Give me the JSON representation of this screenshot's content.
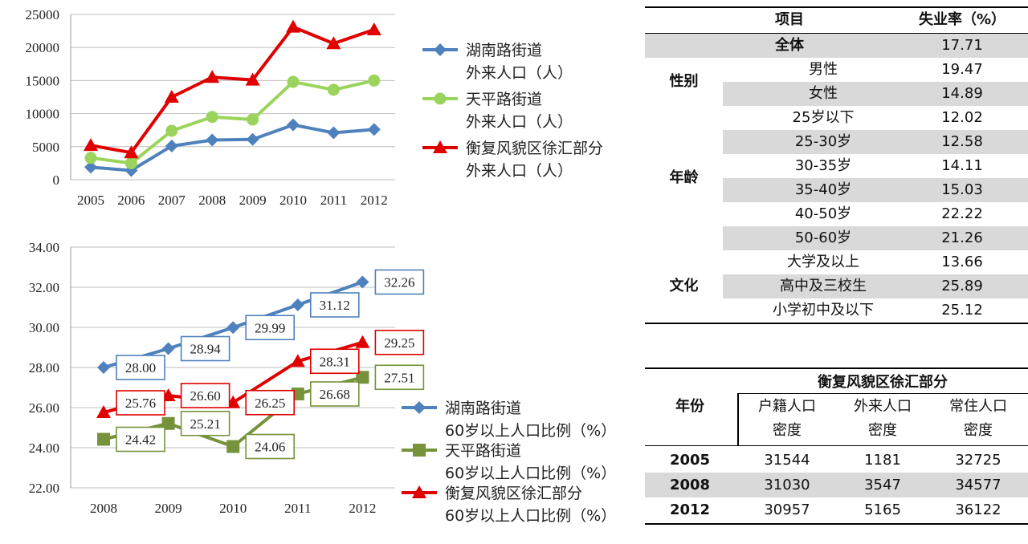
{
  "chart_data": [
    {
      "type": "line",
      "x": [
        "2005",
        "2006",
        "2007",
        "2008",
        "2009",
        "2010",
        "2011",
        "2012"
      ],
      "ylim": [
        0,
        25000
      ],
      "yticks": [
        "0",
        "5000",
        "10000",
        "15000",
        "20000",
        "25000"
      ],
      "grid": true,
      "series": [
        {
          "name": "湖南路街道\n外来人口（人）",
          "line1": "湖南路街道",
          "line2": "外来人口（人）",
          "color": "#4f81bd",
          "marker": "diamond",
          "values": [
            1900,
            1400,
            5100,
            6000,
            6100,
            8300,
            7100,
            7600
          ]
        },
        {
          "name": "天平路街道\n外来人口（人）",
          "line1": "天平路街道",
          "line2": "外来人口（人）",
          "color": "#9bd45c",
          "marker": "circle",
          "values": [
            3300,
            2500,
            7400,
            9500,
            9100,
            14800,
            13600,
            15000
          ]
        },
        {
          "name": "衡复风貌区徐汇部分\n外来人口（人）",
          "line1": "衡复风貌区徐汇部分",
          "line2": "外来人口（人）",
          "color": "#e00000",
          "marker": "triangle",
          "values": [
            5200,
            4100,
            12500,
            15500,
            15100,
            23100,
            20600,
            22700
          ]
        }
      ]
    },
    {
      "type": "line",
      "x": [
        "2008",
        "2009",
        "2010",
        "2011",
        "2012"
      ],
      "ylim": [
        22,
        34
      ],
      "yticks": [
        "22.00",
        "24.00",
        "26.00",
        "28.00",
        "30.00",
        "32.00",
        "34.00"
      ],
      "grid": true,
      "series": [
        {
          "name": "湖南路街道\n60岁以上人口比例（%）",
          "line1": "湖南路街道",
          "line2": "60岁以上人口比例（%）",
          "color": "#4f81bd",
          "marker": "diamond",
          "values": [
            28.0,
            28.94,
            29.99,
            31.12,
            32.26
          ],
          "labels": [
            "28.00",
            "28.94",
            "29.99",
            "31.12",
            "32.26"
          ]
        },
        {
          "name": "天平路街道\n60岁以上人口比例（%）",
          "line1": "天平路街道",
          "line2": "60岁以上人口比例（%）",
          "color": "#76933c",
          "marker": "square",
          "values": [
            24.42,
            25.21,
            24.06,
            26.68,
            27.51
          ],
          "labels": [
            "24.42",
            "25.21",
            "24.06",
            "26.68",
            "27.51"
          ]
        },
        {
          "name": "衡复风貌区徐汇部分\n60岁以上人口比例（%）",
          "line1": "衡复风貌区徐汇部分",
          "line2": "60岁以上人口比例（%）",
          "color": "#e00000",
          "marker": "triangle",
          "values": [
            25.76,
            26.6,
            26.25,
            28.31,
            29.25
          ],
          "labels": [
            "25.76",
            "26.60",
            "26.25",
            "28.31",
            "29.25"
          ]
        }
      ]
    },
    {
      "type": "table",
      "headers": {
        "item": "项目",
        "rate": "失业率（%）"
      },
      "overall": {
        "label": "全体",
        "value": "17.71"
      },
      "groups": [
        {
          "name": "性别",
          "rows": [
            {
              "label": "男性",
              "value": "19.47"
            },
            {
              "label": "女性",
              "value": "14.89"
            }
          ]
        },
        {
          "name": "年龄",
          "rows": [
            {
              "label": "25岁以下",
              "value": "12.02"
            },
            {
              "label": "25-30岁",
              "value": "12.58"
            },
            {
              "label": "30-35岁",
              "value": "14.11"
            },
            {
              "label": "35-40岁",
              "value": "15.03"
            },
            {
              "label": "40-50岁",
              "value": "22.22"
            },
            {
              "label": "50-60岁",
              "value": "21.26"
            }
          ]
        },
        {
          "name": "文化",
          "rows": [
            {
              "label": "大学及以上",
              "value": "13.66"
            },
            {
              "label": "高中及三校生",
              "value": "25.89"
            },
            {
              "label": "小学初中及以下",
              "value": "25.12"
            }
          ]
        }
      ]
    },
    {
      "type": "table",
      "title": "衡复风貌区徐汇部分",
      "year_header": "年份",
      "columns": [
        {
          "line1": "户籍人口",
          "line2": "密度"
        },
        {
          "line1": "外来人口",
          "line2": "密度"
        },
        {
          "line1": "常住人口",
          "line2": "密度"
        }
      ],
      "rows": [
        {
          "year": "2005",
          "values": [
            "31544",
            "1181",
            "32725"
          ]
        },
        {
          "year": "2008",
          "values": [
            "31030",
            "3547",
            "34577"
          ]
        },
        {
          "year": "2012",
          "values": [
            "30957",
            "5165",
            "36122"
          ]
        }
      ]
    }
  ]
}
